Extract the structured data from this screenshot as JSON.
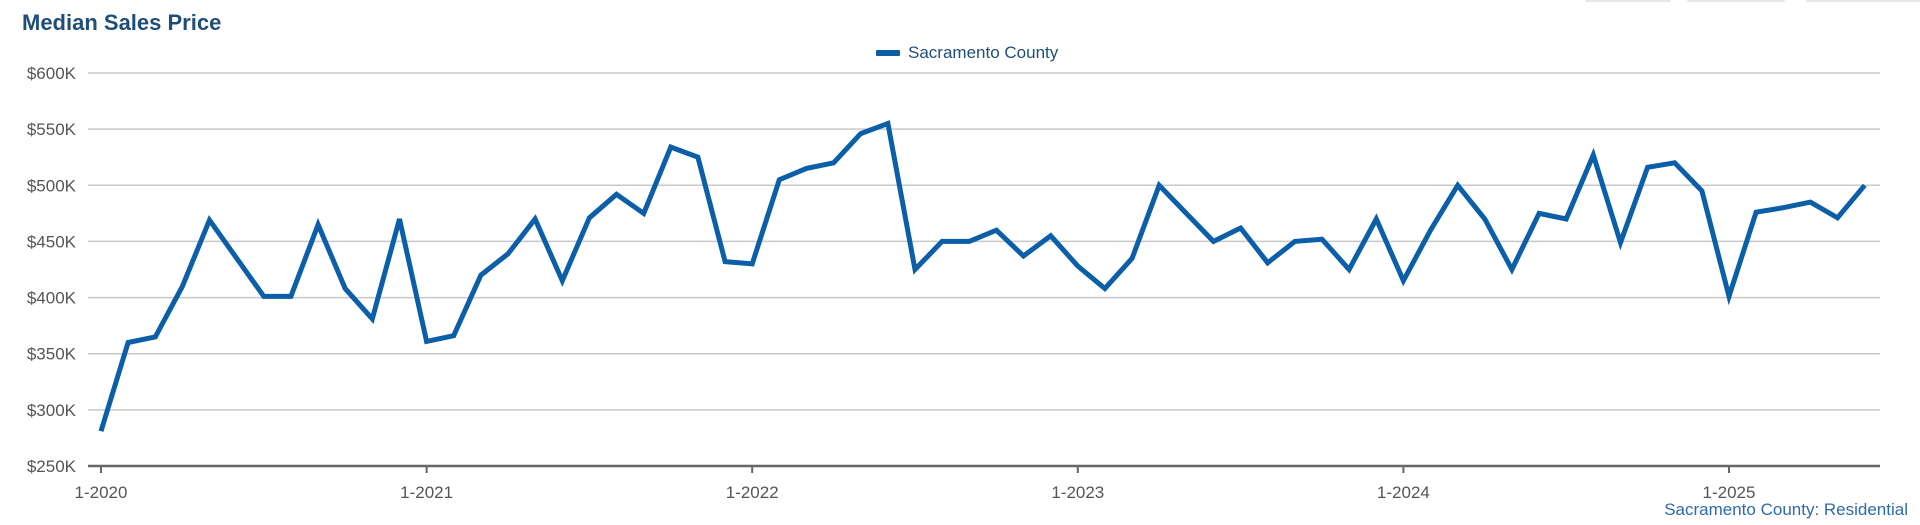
{
  "chart_data": {
    "type": "line",
    "title": "Median Sales Price",
    "xlabel": "",
    "ylabel": "",
    "ylim": [
      250000,
      600000
    ],
    "y_ticks": [
      {
        "value": 250000,
        "label": "$250K"
      },
      {
        "value": 300000,
        "label": "$300K"
      },
      {
        "value": 350000,
        "label": "$350K"
      },
      {
        "value": 400000,
        "label": "$400K"
      },
      {
        "value": 450000,
        "label": "$450K"
      },
      {
        "value": 500000,
        "label": "$500K"
      },
      {
        "value": 550000,
        "label": "$550K"
      },
      {
        "value": 600000,
        "label": "$600K"
      }
    ],
    "x_ticks": [
      {
        "index": 0,
        "label": "1-2020"
      },
      {
        "index": 12,
        "label": "1-2021"
      },
      {
        "index": 24,
        "label": "1-2022"
      },
      {
        "index": 36,
        "label": "1-2023"
      },
      {
        "index": 48,
        "label": "1-2024"
      },
      {
        "index": 60,
        "label": "1-2025"
      }
    ],
    "x": [
      "1-2020",
      "2-2020",
      "3-2020",
      "4-2020",
      "5-2020",
      "6-2020",
      "7-2020",
      "8-2020",
      "9-2020",
      "10-2020",
      "11-2020",
      "12-2020",
      "1-2021",
      "2-2021",
      "3-2021",
      "4-2021",
      "5-2021",
      "6-2021",
      "7-2021",
      "8-2021",
      "9-2021",
      "10-2021",
      "11-2021",
      "12-2021",
      "1-2022",
      "2-2022",
      "3-2022",
      "4-2022",
      "5-2022",
      "6-2022",
      "7-2022",
      "8-2022",
      "9-2022",
      "10-2022",
      "11-2022",
      "12-2022",
      "1-2023",
      "2-2023",
      "3-2023",
      "4-2023",
      "5-2023",
      "6-2023",
      "7-2023",
      "8-2023",
      "9-2023",
      "10-2023",
      "11-2023",
      "12-2023",
      "1-2024",
      "2-2024",
      "3-2024",
      "4-2024",
      "5-2024",
      "6-2024",
      "7-2024",
      "8-2024",
      "9-2024",
      "10-2024",
      "11-2024",
      "12-2024",
      "1-2025",
      "2-2025",
      "3-2025",
      "4-2025",
      "5-2025",
      "6-2025"
    ],
    "series": [
      {
        "name": "Sacramento County",
        "color": "#0b5ea8",
        "values": [
          281000,
          360000,
          365000,
          410000,
          469000,
          435000,
          401000,
          401000,
          465000,
          408000,
          381000,
          470000,
          361000,
          366000,
          420000,
          439000,
          470000,
          415000,
          471000,
          492000,
          475000,
          534000,
          525000,
          432000,
          430000,
          505000,
          515000,
          520000,
          546000,
          555000,
          425000,
          450000,
          450000,
          460000,
          437000,
          455000,
          428000,
          408000,
          435000,
          500000,
          475000,
          450000,
          462000,
          431000,
          450000,
          452000,
          425000,
          470000,
          415000,
          460000,
          500000,
          470000,
          425000,
          475000,
          470000,
          527000,
          449000,
          516000,
          520000,
          495000,
          401000,
          476000,
          480000,
          485000,
          471000,
          500000
        ]
      }
    ],
    "legend": "top-center",
    "grid": true
  },
  "footer": {
    "source": "Sacramento County: Residential"
  }
}
